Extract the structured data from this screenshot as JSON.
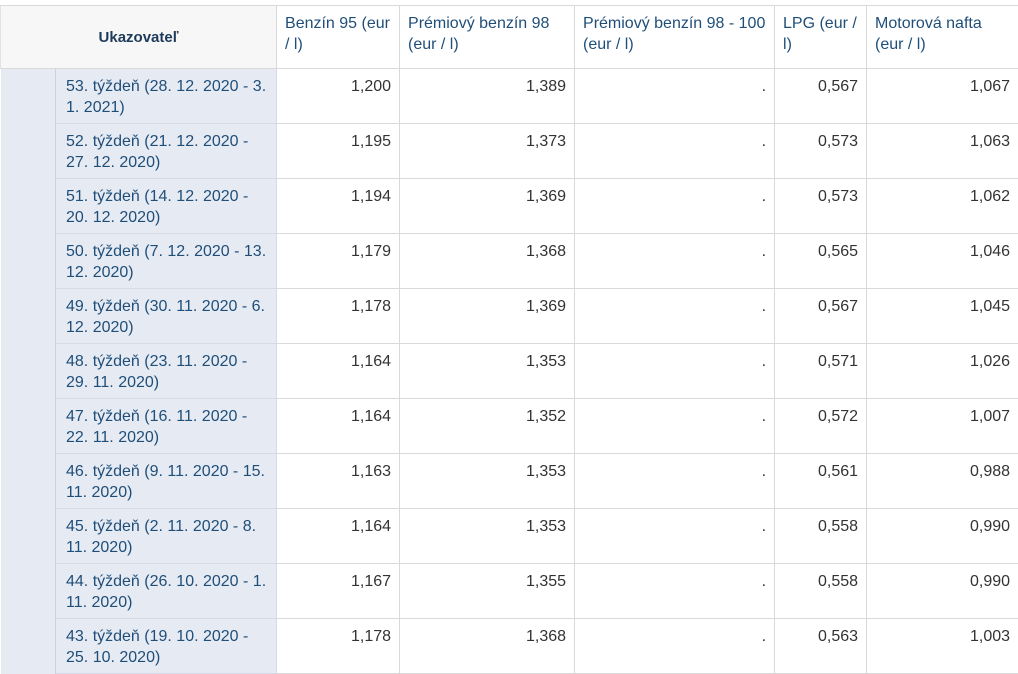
{
  "header": {
    "corner_label": "Ukazovateľ",
    "columns": [
      "Benzín 95 (eur / l)",
      "Prémiový benzín 98 (eur / l)",
      "Prémiový benzín 98 - 100 (eur / l)",
      "LPG (eur / l)",
      "Motorová nafta (eur / l)"
    ]
  },
  "rows": [
    {
      "label": "53. týždeň (28. 12. 2020 - 3. 1. 2021)",
      "b95": "1,200",
      "p98": "1,389",
      "p100": ".",
      "lpg": "0,567",
      "nafta": "1,067"
    },
    {
      "label": "52. týždeň (21. 12. 2020 - 27. 12. 2020)",
      "b95": "1,195",
      "p98": "1,373",
      "p100": ".",
      "lpg": "0,573",
      "nafta": "1,063"
    },
    {
      "label": "51. týždeň (14. 12. 2020 - 20. 12. 2020)",
      "b95": "1,194",
      "p98": "1,369",
      "p100": ".",
      "lpg": "0,573",
      "nafta": "1,062"
    },
    {
      "label": "50. týždeň (7. 12. 2020 - 13. 12. 2020)",
      "b95": "1,179",
      "p98": "1,368",
      "p100": ".",
      "lpg": "0,565",
      "nafta": "1,046"
    },
    {
      "label": "49. týždeň (30. 11. 2020 - 6. 12. 2020)",
      "b95": "1,178",
      "p98": "1,369",
      "p100": ".",
      "lpg": "0,567",
      "nafta": "1,045"
    },
    {
      "label": "48. týždeň (23. 11. 2020 - 29. 11. 2020)",
      "b95": "1,164",
      "p98": "1,353",
      "p100": ".",
      "lpg": "0,571",
      "nafta": "1,026"
    },
    {
      "label": "47. týždeň (16. 11. 2020 - 22. 11. 2020)",
      "b95": "1,164",
      "p98": "1,352",
      "p100": ".",
      "lpg": "0,572",
      "nafta": "1,007"
    },
    {
      "label": "46. týždeň (9. 11. 2020 - 15. 11. 2020)",
      "b95": "1,163",
      "p98": "1,353",
      "p100": ".",
      "lpg": "0,561",
      "nafta": "0,988"
    },
    {
      "label": "45. týždeň (2. 11. 2020 - 8. 11. 2020)",
      "b95": "1,164",
      "p98": "1,353",
      "p100": ".",
      "lpg": "0,558",
      "nafta": "0,990"
    },
    {
      "label": "44. týždeň (26. 10. 2020 - 1. 11. 2020)",
      "b95": "1,167",
      "p98": "1,355",
      "p100": ".",
      "lpg": "0,558",
      "nafta": "0,990"
    },
    {
      "label": "43. týždeň (19. 10. 2020 - 25. 10. 2020)",
      "b95": "1,178",
      "p98": "1,368",
      "p100": ".",
      "lpg": "0,563",
      "nafta": "1,003"
    }
  ]
}
